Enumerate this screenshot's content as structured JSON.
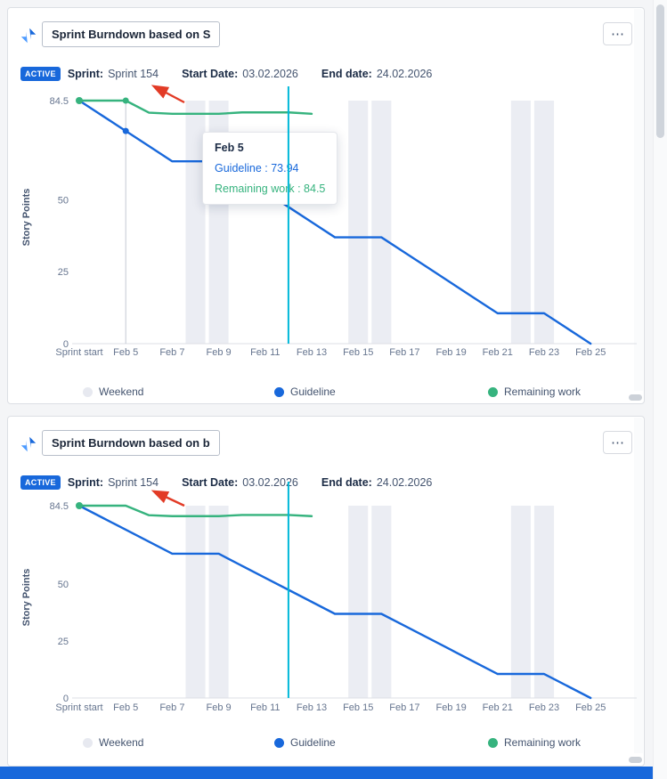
{
  "page": {
    "footer_color": "#1868db"
  },
  "widgets": [
    {
      "title": "Sprint Burndown based on S",
      "menu_icon": "⋯",
      "badge": "ACTIVE",
      "badge_color": "#1868db",
      "sprint_label": "Sprint:",
      "sprint_value": "Sprint 154",
      "start_label": "Start Date:",
      "start_value": "03.02.2026",
      "end_label": "End date:",
      "end_value": "24.02.2026",
      "legend": [
        {
          "label": "Weekend",
          "color": "#e7e9f0"
        },
        {
          "label": "Guideline",
          "color": "#1868db"
        },
        {
          "label": "Remaining work",
          "color": "#36b37e"
        }
      ]
    },
    {
      "title": "Sprint Burndown based on b",
      "menu_icon": "⋯",
      "badge": "ACTIVE",
      "badge_color": "#1868db",
      "sprint_label": "Sprint:",
      "sprint_value": "Sprint 154",
      "start_label": "Start Date:",
      "start_value": "03.02.2026",
      "end_label": "End date:",
      "end_value": "24.02.2026",
      "legend": [
        {
          "label": "Weekend",
          "color": "#e7e9f0"
        },
        {
          "label": "Guideline",
          "color": "#1868db"
        },
        {
          "label": "Remaining work",
          "color": "#36b37e"
        }
      ]
    }
  ],
  "tooltip": {
    "title": "Feb 5",
    "guideline_text": "Guideline : 73.94",
    "remaining_text": "Remaining work : 84.5"
  },
  "chart_data": [
    {
      "type": "line",
      "title": "Sprint Burndown based on S",
      "ylabel": "Story Points",
      "ylim": [
        0,
        84.5
      ],
      "y_ticks": [
        84.5,
        50,
        25,
        0
      ],
      "x_tick_labels": [
        "Sprint start",
        "Feb 5",
        "Feb 7",
        "Feb 9",
        "Feb 11",
        "Feb 13",
        "Feb 15",
        "Feb 17",
        "Feb 19",
        "Feb 21",
        "Feb 23",
        "Feb 25"
      ],
      "x_tick_positions": [
        0,
        2,
        4,
        6,
        8,
        10,
        12,
        14,
        16,
        18,
        20,
        22
      ],
      "x_range_days": 22,
      "weekend_day_indices": [
        4,
        5,
        11,
        12,
        18,
        19
      ],
      "weekend_color": "#ebedf3",
      "today_day_index": 9,
      "today_line_color": "#00b8d9",
      "legend_position": "bottom",
      "grid": false,
      "series": [
        {
          "name": "Guideline",
          "color": "#1868db",
          "x": [
            0,
            1,
            2,
            3,
            4,
            5,
            6,
            7,
            8,
            9,
            10,
            11,
            12,
            13,
            14,
            15,
            16,
            17,
            18,
            19,
            20,
            21,
            22
          ],
          "values": [
            84.5,
            79.22,
            73.94,
            68.66,
            63.38,
            63.38,
            63.38,
            58.09,
            52.81,
            47.53,
            42.25,
            36.97,
            36.97,
            36.97,
            31.69,
            26.41,
            21.13,
            15.84,
            10.56,
            10.56,
            10.56,
            5.28,
            0
          ]
        },
        {
          "name": "Remaining work",
          "color": "#36b37e",
          "start_dot": true,
          "x": [
            0,
            1,
            2,
            3,
            4,
            5,
            6,
            7,
            8,
            9,
            10
          ],
          "values": [
            84.5,
            84.5,
            84.5,
            80.3,
            79.9,
            79.9,
            79.9,
            80.4,
            80.4,
            80.4,
            79.9
          ]
        }
      ],
      "hover": {
        "day": 2,
        "label": "Feb 5",
        "points": [
          {
            "series": "Guideline",
            "value": 73.94
          },
          {
            "series": "Remaining work",
            "value": 84.5
          }
        ]
      }
    },
    {
      "type": "line",
      "title": "Sprint Burndown based on b",
      "ylabel": "Story Points",
      "ylim": [
        0,
        84.5
      ],
      "y_ticks": [
        84.5,
        50,
        25,
        0
      ],
      "x_tick_labels": [
        "Sprint start",
        "Feb 5",
        "Feb 7",
        "Feb 9",
        "Feb 11",
        "Feb 13",
        "Feb 15",
        "Feb 17",
        "Feb 19",
        "Feb 21",
        "Feb 23",
        "Feb 25"
      ],
      "x_tick_positions": [
        0,
        2,
        4,
        6,
        8,
        10,
        12,
        14,
        16,
        18,
        20,
        22
      ],
      "x_range_days": 22,
      "weekend_day_indices": [
        4,
        5,
        11,
        12,
        18,
        19
      ],
      "weekend_color": "#ebedf3",
      "today_day_index": 9,
      "today_line_color": "#00b8d9",
      "legend_position": "bottom",
      "grid": false,
      "series": [
        {
          "name": "Guideline",
          "color": "#1868db",
          "x": [
            0,
            1,
            2,
            3,
            4,
            5,
            6,
            7,
            8,
            9,
            10,
            11,
            12,
            13,
            14,
            15,
            16,
            17,
            18,
            19,
            20,
            21,
            22
          ],
          "values": [
            84.5,
            79.22,
            73.94,
            68.66,
            63.38,
            63.38,
            63.38,
            58.09,
            52.81,
            47.53,
            42.25,
            36.97,
            36.97,
            36.97,
            31.69,
            26.41,
            21.13,
            15.84,
            10.56,
            10.56,
            10.56,
            5.28,
            0
          ]
        },
        {
          "name": "Remaining work",
          "color": "#36b37e",
          "start_dot": true,
          "x": [
            0,
            1,
            2,
            3,
            4,
            5,
            6,
            7,
            8,
            9,
            10
          ],
          "values": [
            84.5,
            84.5,
            84.5,
            80.3,
            79.9,
            79.9,
            79.9,
            80.4,
            80.4,
            80.4,
            79.9
          ]
        }
      ]
    }
  ]
}
